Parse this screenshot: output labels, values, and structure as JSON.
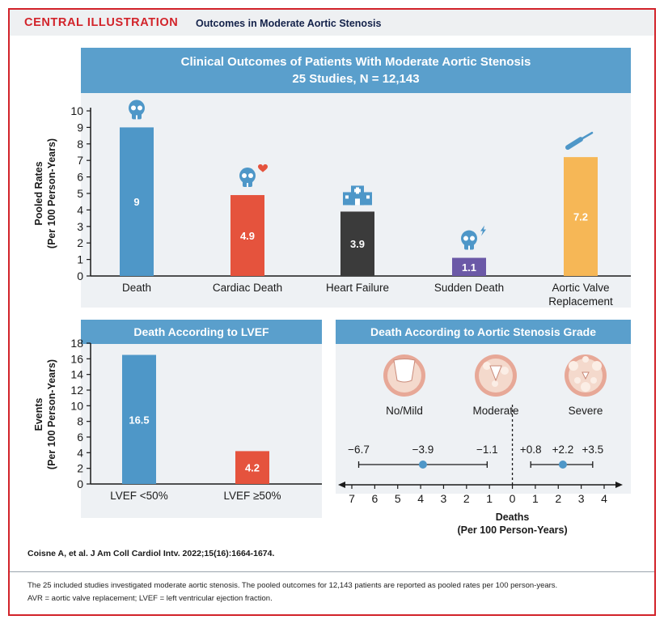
{
  "header": {
    "title": "CENTRAL ILLUSTRATION",
    "subtitle": "Outcomes in Moderate Aortic Stenosis"
  },
  "colors": {
    "frame": "#d2232a",
    "banner": "#5a9fcc",
    "panel": "#eef1f4",
    "death": "#4e97c8",
    "cardiac_death": "#e5533d",
    "heart_failure": "#3b3b3b",
    "sudden_death": "#6b59a7",
    "avr": "#f6b756"
  },
  "chart_data": [
    {
      "type": "bar",
      "title": "Clinical Outcomes of Patients With Moderate Aortic Stenosis",
      "subtitle": "25 Studies, N = 12,143",
      "ylabel_lines": [
        "Pooled Rates",
        "(Per 100 Person-Years)"
      ],
      "ylim": [
        0,
        10
      ],
      "yticks": [
        0,
        1,
        2,
        3,
        4,
        5,
        6,
        7,
        8,
        9,
        10
      ],
      "categories": [
        [
          "Death"
        ],
        [
          "Cardiac Death"
        ],
        [
          "Heart Failure"
        ],
        [
          "Sudden Death"
        ],
        [
          "Aortic Valve",
          "Replacement"
        ]
      ],
      "values": [
        9,
        4.9,
        3.9,
        1.1,
        7.2
      ],
      "data_labels": [
        "9",
        "4.9",
        "3.9",
        "1.1",
        "7.2"
      ],
      "colors": [
        "#4e97c8",
        "#e5533d",
        "#3b3b3b",
        "#6b59a7",
        "#f6b756"
      ],
      "icons": [
        "skull-icon",
        "skull-heart-icon",
        "hospital-icon",
        "skull-lightning-icon",
        "scalpel-icon"
      ]
    },
    {
      "type": "bar",
      "title": "Death According to LVEF",
      "ylabel_lines": [
        "Events",
        "(Per 100 Person-Years)"
      ],
      "ylim": [
        0,
        18
      ],
      "yticks": [
        0,
        2,
        4,
        6,
        8,
        10,
        12,
        14,
        16,
        18
      ],
      "categories": [
        [
          "LVEF <50%"
        ],
        [
          "LVEF ≥50%"
        ]
      ],
      "values": [
        16.5,
        4.2
      ],
      "data_labels": [
        "16.5",
        "4.2"
      ],
      "colors": [
        "#4e97c8",
        "#e5533d"
      ]
    },
    {
      "type": "scatter",
      "title": "Death According to Aortic Stenosis Grade",
      "valve_labels": [
        "No/Mild",
        "Moderate",
        "Severe"
      ],
      "xlim": [
        -7,
        4
      ],
      "xticks": [
        -7,
        -6,
        -5,
        -4,
        -3,
        -2,
        -1,
        0,
        1,
        2,
        3,
        4
      ],
      "xtick_labels": [
        "7",
        "6",
        "5",
        "4",
        "3",
        "2",
        "1",
        "0",
        "1",
        "2",
        "3",
        "4"
      ],
      "xlabel_lines": [
        "Deaths",
        "(Per 100 Person-Years)"
      ],
      "intervals": [
        {
          "point": -3.9,
          "low": -6.7,
          "high": -1.1,
          "labels": [
            "−6.7",
            "−3.9",
            "−1.1"
          ]
        },
        {
          "point": 2.2,
          "low": 0.8,
          "high": 3.5,
          "labels": [
            "+0.8",
            "+2.2",
            "+3.5"
          ]
        }
      ]
    }
  ],
  "citation": "Coisne A, et al. J Am Coll Cardiol Intv. 2022;15(16):1664-1674.",
  "caption": {
    "line1": "The 25 included studies investigated moderate aortic stenosis. The pooled outcomes for 12,143 patients are reported as pooled rates per 100 person-years.",
    "line2": "AVR = aortic valve replacement; LVEF = left ventricular ejection fraction."
  }
}
